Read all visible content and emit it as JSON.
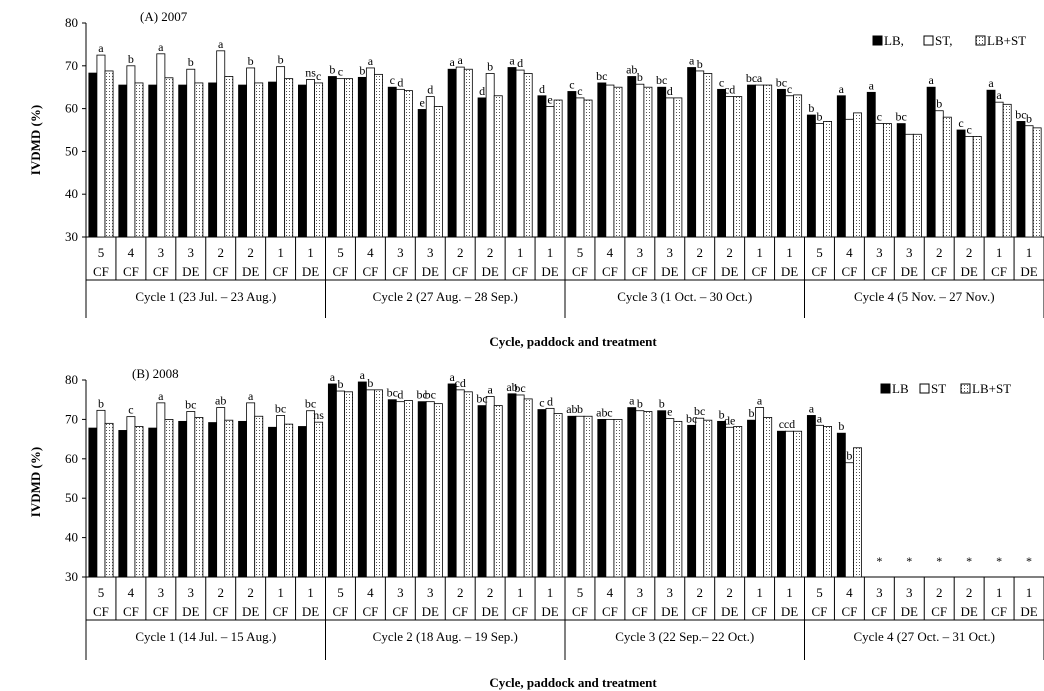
{
  "figure": {
    "ylabel": "IVDMD (%)",
    "xlabel": "Cycle, paddock and treatment",
    "legend": {
      "A": [
        "LB,",
        "ST,",
        "LB+ST"
      ],
      "B": [
        "LB",
        "ST",
        "LB+ST"
      ]
    },
    "colors": {
      "LB": "#000000",
      "ST": "#ffffff",
      "LBST": "#ffffff",
      "outline": "#000000"
    }
  },
  "chart_data": [
    {
      "type": "bar",
      "title": "(A) 2007",
      "ylim": [
        30,
        80
      ],
      "yticks": [
        30,
        40,
        50,
        60,
        70,
        80
      ],
      "group_labels": [
        [
          "5",
          "CF"
        ],
        [
          "4",
          "CF"
        ],
        [
          "3",
          "CF"
        ],
        [
          "3",
          "DE"
        ],
        [
          "2",
          "CF"
        ],
        [
          "2",
          "DE"
        ],
        [
          "1",
          "CF"
        ],
        [
          "1",
          "DE"
        ],
        [
          "5",
          "CF"
        ],
        [
          "4",
          "CF"
        ],
        [
          "3",
          "CF"
        ],
        [
          "3",
          "DE"
        ],
        [
          "2",
          "CF"
        ],
        [
          "2",
          "DE"
        ],
        [
          "1",
          "CF"
        ],
        [
          "1",
          "DE"
        ],
        [
          "5",
          "CF"
        ],
        [
          "4",
          "CF"
        ],
        [
          "3",
          "CF"
        ],
        [
          "3",
          "DE"
        ],
        [
          "2",
          "CF"
        ],
        [
          "2",
          "DE"
        ],
        [
          "1",
          "CF"
        ],
        [
          "1",
          "DE"
        ],
        [
          "5",
          "CF"
        ],
        [
          "4",
          "CF"
        ],
        [
          "3",
          "CF"
        ],
        [
          "3",
          "DE"
        ],
        [
          "2",
          "CF"
        ],
        [
          "2",
          "DE"
        ],
        [
          "1",
          "CF"
        ],
        [
          "1",
          "DE"
        ]
      ],
      "cycles": [
        "Cycle 1 (23 Jul. – 23 Aug.)",
        "Cycle 2 (27 Aug. – 28 Sep.)",
        "Cycle 3 (1 Oct. – 30 Oct.)",
        "Cycle 4 (5 Nov. – 27 Nov.)"
      ],
      "series": [
        {
          "name": "LB",
          "values": [
            68.3,
            65.5,
            65.5,
            65.5,
            66,
            65.5,
            66.2,
            65.5,
            67.5,
            67.3,
            65,
            59.8,
            69.2,
            62.5,
            69.6,
            63,
            64,
            66,
            67.5,
            65,
            69.6,
            64.5,
            65.5,
            64.5,
            58.5,
            63,
            63.8,
            56.5,
            65,
            55,
            64.3,
            57
          ]
        },
        {
          "name": "ST",
          "values": [
            72.5,
            70,
            72.8,
            69.2,
            73.5,
            69.5,
            69.8,
            66.8,
            67,
            69.5,
            64.5,
            62.8,
            69.7,
            68.2,
            69,
            60.5,
            62.5,
            65.5,
            65.7,
            62.5,
            68.8,
            62.8,
            65.5,
            63,
            56.5,
            57.5,
            56.5,
            54,
            59.5,
            53.5,
            61.5,
            56
          ]
        },
        {
          "name": "LB+ST",
          "values": [
            68.8,
            66,
            67.2,
            66,
            67.5,
            66,
            67,
            66,
            67,
            68,
            64.2,
            60.5,
            69.2,
            63,
            68.2,
            62,
            62,
            65,
            65,
            62.5,
            68.2,
            62.8,
            65.5,
            63.2,
            57,
            59,
            56.5,
            54,
            58,
            53.5,
            61,
            55.5
          ]
        }
      ],
      "letters": [
        [
          "",
          "a",
          ""
        ],
        [
          "",
          "b",
          ""
        ],
        [
          "",
          "a",
          ""
        ],
        [
          "",
          "b",
          ""
        ],
        [
          "",
          "a",
          ""
        ],
        [
          "",
          "b",
          ""
        ],
        [
          "",
          "b",
          ""
        ],
        [
          "",
          "ns",
          "c"
        ],
        [
          "b",
          "c",
          ""
        ],
        [
          "b",
          "a",
          ""
        ],
        [
          "c",
          "d",
          ""
        ],
        [
          "e",
          "d",
          ""
        ],
        [
          "a",
          "a",
          ""
        ],
        [
          "d",
          "b",
          ""
        ],
        [
          "a",
          "d",
          ""
        ],
        [
          "d",
          "e",
          ""
        ],
        [
          "c",
          "c",
          ""
        ],
        [
          "bc",
          "",
          ""
        ],
        [
          "ab",
          "b",
          ""
        ],
        [
          "bc",
          "d",
          ""
        ],
        [
          "a",
          "b",
          ""
        ],
        [
          "c",
          "cd",
          ""
        ],
        [
          "bc",
          "a",
          ""
        ],
        [
          "bc",
          "c",
          ""
        ],
        [
          "b",
          "b",
          ""
        ],
        [
          "a",
          "",
          ""
        ],
        [
          "a",
          "c",
          ""
        ],
        [
          "bc",
          "",
          ""
        ],
        [
          "a",
          "b",
          ""
        ],
        [
          "c",
          "c",
          ""
        ],
        [
          "a",
          "a",
          ""
        ],
        [
          "bc",
          "b",
          ""
        ]
      ],
      "missing": []
    },
    {
      "type": "bar",
      "title": "(B) 2008",
      "ylim": [
        30,
        80
      ],
      "yticks": [
        30,
        40,
        50,
        60,
        70,
        80
      ],
      "group_labels": [
        [
          "5",
          "CF"
        ],
        [
          "4",
          "CF"
        ],
        [
          "3",
          "CF"
        ],
        [
          "3",
          "DE"
        ],
        [
          "2",
          "CF"
        ],
        [
          "2",
          "DE"
        ],
        [
          "1",
          "CF"
        ],
        [
          "1",
          "DE"
        ],
        [
          "5",
          "CF"
        ],
        [
          "4",
          "CF"
        ],
        [
          "3",
          "CF"
        ],
        [
          "3",
          "DE"
        ],
        [
          "2",
          "CF"
        ],
        [
          "2",
          "DE"
        ],
        [
          "1",
          "CF"
        ],
        [
          "1",
          "DE"
        ],
        [
          "5",
          "CF"
        ],
        [
          "4",
          "CF"
        ],
        [
          "3",
          "CF"
        ],
        [
          "3",
          "DE"
        ],
        [
          "2",
          "CF"
        ],
        [
          "2",
          "DE"
        ],
        [
          "1",
          "CF"
        ],
        [
          "1",
          "DE"
        ],
        [
          "5",
          "CF"
        ],
        [
          "4",
          "CF"
        ],
        [
          "3",
          "CF"
        ],
        [
          "3",
          "DE"
        ],
        [
          "2",
          "CF"
        ],
        [
          "2",
          "DE"
        ],
        [
          "1",
          "CF"
        ],
        [
          "1",
          "DE"
        ]
      ],
      "cycles": [
        "Cycle 1 (14 Jul. – 15 Aug.)",
        "Cycle 2 (18 Aug. – 19 Sep.)",
        "Cycle 3 (22 Sep.– 22 Oct.)",
        "Cycle 4 (27 Oct. – 31 Oct.)"
      ],
      "series": [
        {
          "name": "LB",
          "values": [
            67.8,
            67.2,
            67.8,
            69.5,
            69.2,
            69.5,
            68,
            68.2,
            79,
            79.5,
            75,
            74.5,
            79,
            73.5,
            76.5,
            72.5,
            70.8,
            70,
            73,
            72.2,
            68.5,
            69.5,
            69.8,
            67,
            71,
            66.5,
            null,
            null,
            null,
            null,
            null,
            null
          ]
        },
        {
          "name": "ST",
          "values": [
            72.3,
            70.7,
            74.2,
            72,
            73,
            74.2,
            71,
            72.2,
            77.2,
            77.5,
            74.5,
            74.5,
            77.5,
            75.8,
            76.2,
            72.8,
            70.8,
            70,
            72.2,
            70.2,
            70.3,
            68,
            73,
            67,
            68.5,
            59,
            null,
            null,
            null,
            null,
            null,
            null
          ]
        },
        {
          "name": "LB+ST",
          "values": [
            69,
            68.2,
            70,
            70.5,
            69.8,
            70.8,
            68.8,
            69.3,
            77,
            77.5,
            74.8,
            74,
            77,
            73.5,
            75.2,
            71.5,
            70.8,
            70,
            72,
            69.5,
            69.8,
            68.2,
            70.5,
            67,
            68.2,
            62.8,
            null,
            null,
            null,
            null,
            null,
            null
          ]
        }
      ],
      "letters": [
        [
          "",
          "b",
          ""
        ],
        [
          "",
          "c",
          ""
        ],
        [
          "",
          "a",
          ""
        ],
        [
          "",
          "bc",
          ""
        ],
        [
          "",
          "ab",
          ""
        ],
        [
          "",
          "a",
          ""
        ],
        [
          "",
          "bc",
          ""
        ],
        [
          "",
          "bc",
          "ns"
        ],
        [
          "a",
          "b",
          ""
        ],
        [
          "a",
          "b",
          ""
        ],
        [
          "bc",
          "d",
          ""
        ],
        [
          "bc",
          "bc",
          ""
        ],
        [
          "a",
          "cd",
          ""
        ],
        [
          "bc",
          "a",
          ""
        ],
        [
          "ab",
          "bc",
          ""
        ],
        [
          "c",
          "d",
          ""
        ],
        [
          "ab",
          "b",
          ""
        ],
        [
          "ab",
          "c",
          ""
        ],
        [
          "a",
          "b",
          ""
        ],
        [
          "b",
          "e",
          ""
        ],
        [
          "bc",
          "bc",
          ""
        ],
        [
          "b",
          "de",
          ""
        ],
        [
          "b",
          "a",
          ""
        ],
        [
          "c",
          "cd",
          ""
        ],
        [
          "a",
          "a",
          ""
        ],
        [
          "b",
          "b",
          ""
        ],
        [
          "",
          "",
          ""
        ],
        [
          "",
          "",
          ""
        ],
        [
          "",
          "",
          ""
        ],
        [
          "",
          "",
          ""
        ],
        [
          "",
          "",
          ""
        ],
        [
          "",
          "",
          ""
        ]
      ],
      "missing": [
        26,
        27,
        28,
        29,
        30,
        31
      ],
      "missing_symbol": "*"
    }
  ]
}
